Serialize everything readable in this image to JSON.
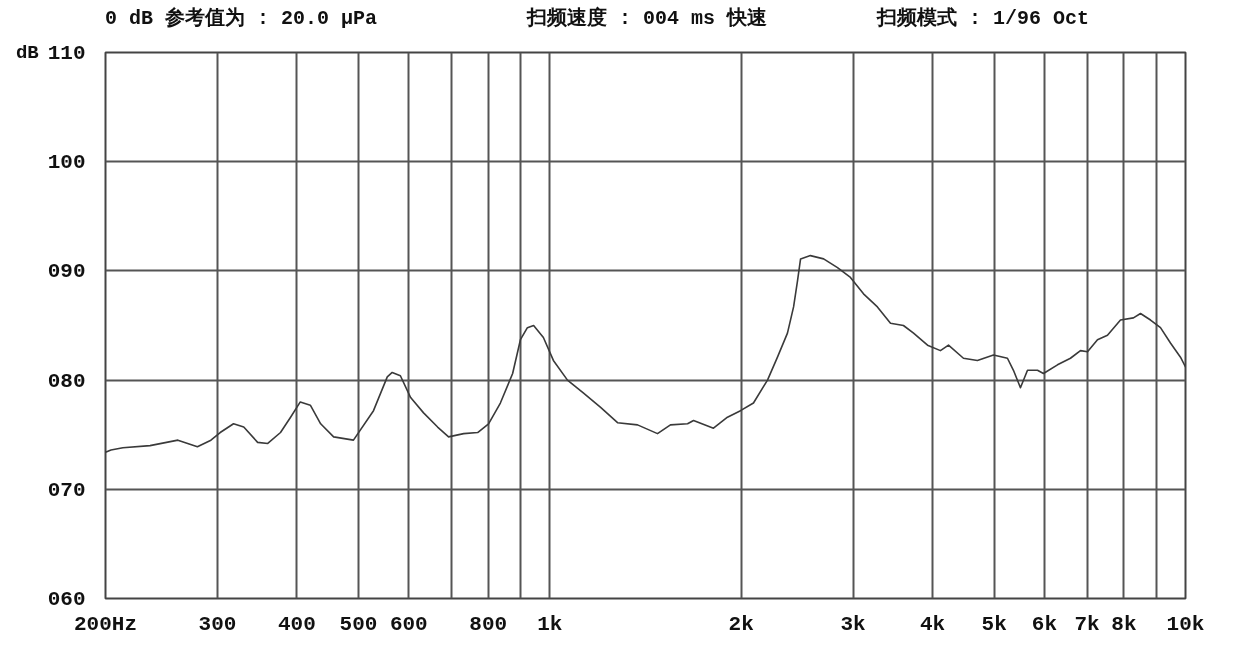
{
  "chart_data": {
    "type": "line",
    "title": "0 dB 参考值为 : 20.0 μPa",
    "annotations": [
      "扫频速度 : 004 ms 快速",
      "扫频模式 : 1/96 Oct"
    ],
    "ylabel": "dB",
    "log": "x",
    "grid": true,
    "color": "#3a3a3a",
    "xlim": [
      200,
      10000
    ],
    "ylim": [
      60,
      110
    ],
    "xticks": [
      {
        "value": 200,
        "label": "200Hz"
      },
      300,
      400,
      500,
      600,
      {
        "value": 700,
        "label": null
      },
      800,
      {
        "value": 900,
        "label": null
      },
      {
        "value": 1000,
        "label": "1k"
      },
      {
        "value": 2000,
        "label": "2k"
      },
      {
        "value": 3000,
        "label": "3k"
      },
      {
        "value": 4000,
        "label": "4k"
      },
      {
        "value": 5000,
        "label": "5k"
      },
      {
        "value": 6000,
        "label": "6k"
      },
      {
        "value": 7000,
        "label": "7k"
      },
      {
        "value": 8000,
        "label": "8k"
      },
      {
        "value": 9000,
        "label": null
      },
      {
        "value": 10000,
        "label": "10k"
      }
    ],
    "yticks": [
      {
        "value": 60,
        "label": "060"
      },
      {
        "value": 70,
        "label": "070"
      },
      {
        "value": 80,
        "label": "080"
      },
      {
        "value": 90,
        "label": "090"
      },
      100,
      110
    ],
    "x": [
      200,
      204,
      213,
      235,
      260,
      279,
      293,
      303,
      318,
      330,
      347,
      360,
      377,
      391,
      405,
      420,
      436,
      457,
      491,
      528,
      555,
      565,
      582,
      604,
      633,
      666,
      693,
      732,
      770,
      801,
      836,
      874,
      899,
      922,
      943,
      977,
      1013,
      1066,
      1130,
      1202,
      1278,
      1374,
      1477,
      1548,
      1647,
      1683,
      1809,
      1903,
      1995,
      2091,
      2200,
      2281,
      2365,
      2418,
      2453,
      2480,
      2570,
      2696,
      2835,
      2971,
      3115,
      3276,
      3435,
      3600,
      3734,
      3928,
      4116,
      4238,
      4474,
      4706,
      4988,
      5247,
      5362,
      5500,
      5642,
      5850,
      5978,
      6290,
      6592,
      6836,
      7012,
      7270,
      7538,
      7902,
      8282,
      8496,
      8810,
      9134,
      9470,
      9820,
      10000
    ],
    "values": [
      73.4,
      73.6,
      73.8,
      74.0,
      74.5,
      73.9,
      74.5,
      75.2,
      76.0,
      75.7,
      74.3,
      74.2,
      75.2,
      76.6,
      78.0,
      77.7,
      76.0,
      74.8,
      74.5,
      77.2,
      80.3,
      80.7,
      80.4,
      78.4,
      77.0,
      75.7,
      74.8,
      75.1,
      75.2,
      76.0,
      77.9,
      80.6,
      83.7,
      84.8,
      85.0,
      83.9,
      81.8,
      80.0,
      78.8,
      77.5,
      76.1,
      75.9,
      75.1,
      75.9,
      76.0,
      76.3,
      75.6,
      76.6,
      77.2,
      77.9,
      80.0,
      82.1,
      84.3,
      86.7,
      89.1,
      91.1,
      91.4,
      91.1,
      90.3,
      89.4,
      87.9,
      86.7,
      85.2,
      85.0,
      84.3,
      83.2,
      82.7,
      83.2,
      82.0,
      81.8,
      82.3,
      82.0,
      80.9,
      79.3,
      80.9,
      80.9,
      80.6,
      81.4,
      82.0,
      82.7,
      82.6,
      83.7,
      84.1,
      85.5,
      85.7,
      86.1,
      85.5,
      84.8,
      83.4,
      82.1,
      81.2
    ]
  }
}
